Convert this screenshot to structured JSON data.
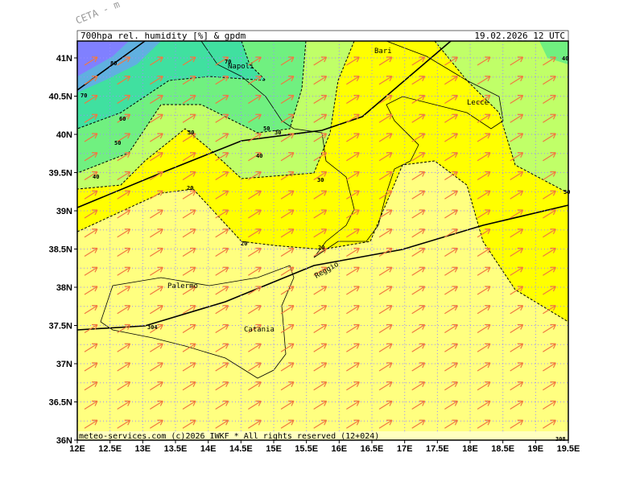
{
  "header": {
    "title": "700hpa rel. humidity [%] & gpdm",
    "date": "19.02.2026 12 UTC",
    "watermark": "CETA - m"
  },
  "footer": "meteo-services.com (c)2026 IWKF * All rights reserved (12+024)",
  "lat_ticks": [
    {
      "value": 36,
      "label": "36N"
    },
    {
      "value": 36.5,
      "label": "36.5N"
    },
    {
      "value": 37,
      "label": "37N"
    },
    {
      "value": 37.5,
      "label": "37.5N"
    },
    {
      "value": 38,
      "label": "38N"
    },
    {
      "value": 38.5,
      "label": "38.5N"
    },
    {
      "value": 39,
      "label": "39N"
    },
    {
      "value": 39.5,
      "label": "39.5N"
    },
    {
      "value": 40,
      "label": "40N"
    },
    {
      "value": 40.5,
      "label": "40.5N"
    },
    {
      "value": 41,
      "label": "41N"
    }
  ],
  "lon_ticks": [
    {
      "value": 12,
      "label": "12E"
    },
    {
      "value": 12.5,
      "label": "12.5E"
    },
    {
      "value": 13,
      "label": "13E"
    },
    {
      "value": 13.5,
      "label": "13.5E"
    },
    {
      "value": 14,
      "label": "14E"
    },
    {
      "value": 14.5,
      "label": "14.5E"
    },
    {
      "value": 15,
      "label": "15E"
    },
    {
      "value": 15.5,
      "label": "15.5E"
    },
    {
      "value": 16,
      "label": "16E"
    },
    {
      "value": 16.5,
      "label": "16.5E"
    },
    {
      "value": 17,
      "label": "17E"
    },
    {
      "value": 17.5,
      "label": "17.5E"
    },
    {
      "value": 18,
      "label": "18E"
    },
    {
      "value": 18.5,
      "label": "18.5E"
    },
    {
      "value": 19,
      "label": "19E"
    },
    {
      "value": 19.5,
      "label": "19.5E"
    }
  ],
  "cities": [
    "Bari",
    "Napoli",
    "Lecce",
    "Palermo",
    "Catania",
    "Reggio"
  ],
  "contour_labels": [
    "70",
    "60",
    "50",
    "40",
    "30",
    "20",
    "80",
    "70",
    "50",
    "30",
    "40",
    "30",
    "20",
    "20",
    "304",
    "308",
    "30",
    "40"
  ]
}
